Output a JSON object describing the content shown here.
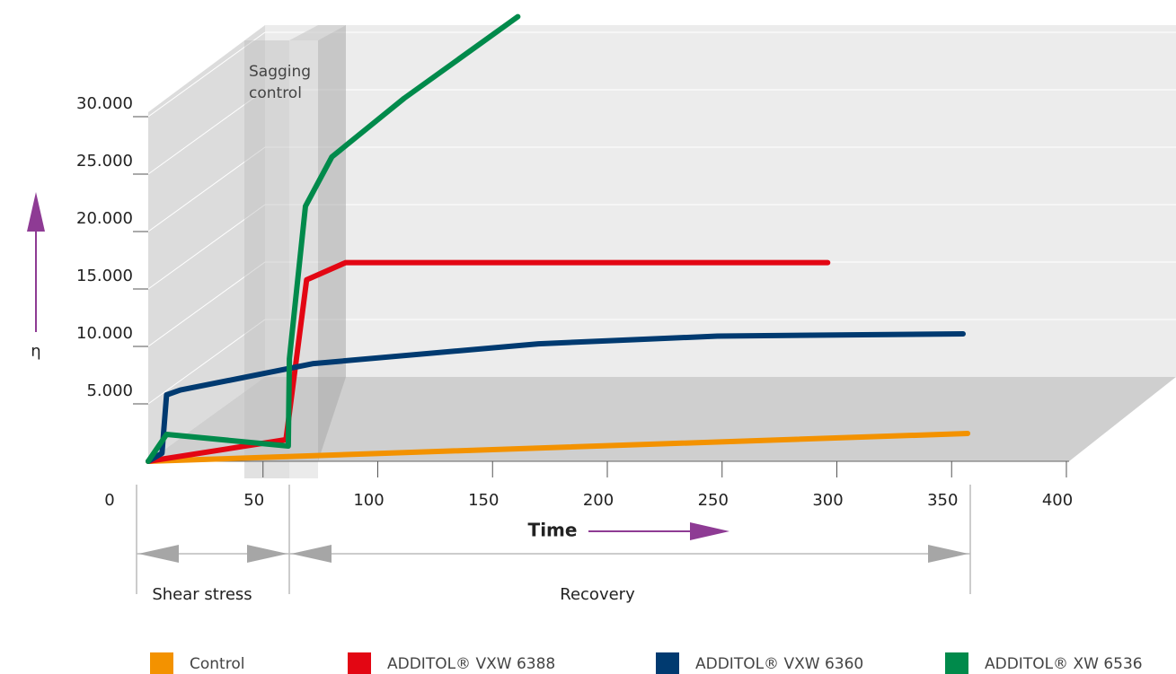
{
  "chart_data": {
    "type": "line",
    "ylabel": "η",
    "xlabel": "Time",
    "annotations": {
      "band": "Sagging control",
      "phase1": "Shear stress",
      "phase2": "Recovery"
    },
    "xlim": [
      0,
      400
    ],
    "xticks": [
      0,
      50,
      100,
      150,
      200,
      250,
      300,
      350,
      400
    ],
    "ylim": [
      0,
      40000
    ],
    "yticks": [
      {
        "value": 5000,
        "label": "5.000"
      },
      {
        "value": 10000,
        "label": "10.000"
      },
      {
        "value": 15000,
        "label": "15.000"
      },
      {
        "value": 20000,
        "label": "20.000"
      },
      {
        "value": 25000,
        "label": "25.000"
      },
      {
        "value": 30000,
        "label": "30.000"
      }
    ],
    "grid": true,
    "series": [
      {
        "name": "Control",
        "color": "#f39200",
        "x": [
          0,
          357
        ],
        "values": [
          0,
          2420
        ]
      },
      {
        "name": "ADDITOL® VXW 6388",
        "color": "#e30613",
        "x": [
          0,
          60,
          69,
          86,
          296
        ],
        "values": [
          0,
          1880,
          15800,
          17300,
          17300
        ]
      },
      {
        "name": "ADDITOL® VXW 6360",
        "color": "#003a70",
        "x": [
          0,
          6,
          8,
          14,
          72,
          170,
          248,
          355
        ],
        "values": [
          0,
          700,
          5780,
          6200,
          8510,
          10230,
          10900,
          11090
        ]
      },
      {
        "name": "ADDITOL® XW 6536",
        "color": "#008a4b",
        "x": [
          0,
          8,
          61,
          61.5,
          68.5,
          80,
          111.5,
          161
        ],
        "values": [
          0,
          2340,
          1330,
          8900,
          22200,
          26500,
          31600,
          38700
        ]
      }
    ]
  }
}
